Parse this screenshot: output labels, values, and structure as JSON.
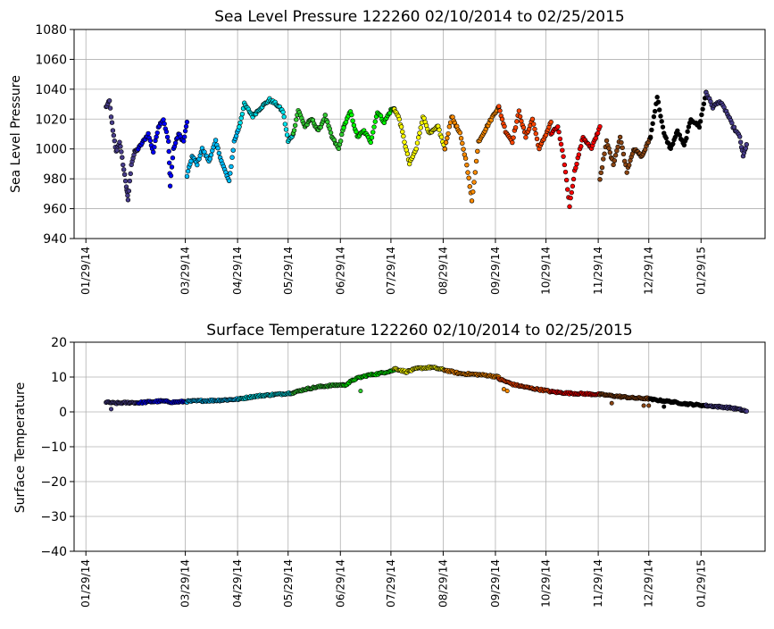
{
  "chart_data": [
    {
      "type": "scatter",
      "title": "Sea Level Pressure 122260  02/10/2014 to 02/25/2015",
      "xlabel": "",
      "ylabel": "Sea Level Pressure",
      "ylim": [
        940,
        1080
      ],
      "yticks": [
        940,
        960,
        980,
        1000,
        1020,
        1040,
        1060,
        1080
      ],
      "xlim": [
        "2014-01-22",
        "2015-03-08"
      ],
      "xticks": [
        "2014-01-29",
        "2014-03-29",
        "2014-04-29",
        "2014-05-29",
        "2014-06-29",
        "2014-07-29",
        "2014-08-29",
        "2014-09-29",
        "2014-10-29",
        "2014-11-29",
        "2014-12-29",
        "2015-01-29"
      ],
      "xtick_labels": [
        "01/29/14",
        "03/29/14",
        "04/29/14",
        "05/29/14",
        "06/29/14",
        "07/29/14",
        "08/29/14",
        "09/29/14",
        "10/29/14",
        "11/29/14",
        "12/29/14",
        "01/29/15"
      ],
      "grid": true,
      "legend": "none",
      "series": [
        {
          "color": "#483d8b",
          "points": [
            [
              "2014-02-10",
              1028
            ],
            [
              "2014-02-12",
              1032
            ],
            [
              "2014-02-14",
              1012
            ],
            [
              "2014-02-16",
              998
            ],
            [
              "2014-02-18",
              1005
            ],
            [
              "2014-02-20",
              990
            ],
            [
              "2014-02-22",
              975
            ],
            [
              "2014-02-23",
              966
            ],
            [
              "2014-02-25",
              990
            ],
            [
              "2014-02-27",
              998
            ],
            [
              "2014-03-01",
              1000
            ]
          ]
        },
        {
          "color": "#0000ff",
          "points": [
            [
              "2014-03-01",
              1000
            ],
            [
              "2014-03-04",
              1005
            ],
            [
              "2014-03-07",
              1010
            ],
            [
              "2014-03-10",
              998
            ],
            [
              "2014-03-13",
              1015
            ],
            [
              "2014-03-16",
              1020
            ],
            [
              "2014-03-19",
              1005
            ],
            [
              "2014-03-20",
              976
            ],
            [
              "2014-03-22",
              1000
            ],
            [
              "2014-03-25",
              1010
            ],
            [
              "2014-03-28",
              1005
            ],
            [
              "2014-03-30",
              1018
            ]
          ]
        },
        {
          "color": "#00bfff",
          "points": [
            [
              "2014-03-30",
              982
            ],
            [
              "2014-04-02",
              995
            ],
            [
              "2014-04-05",
              990
            ],
            [
              "2014-04-08",
              1000
            ],
            [
              "2014-04-12",
              992
            ],
            [
              "2014-04-16",
              1005
            ],
            [
              "2014-04-20",
              990
            ],
            [
              "2014-04-24",
              978
            ],
            [
              "2014-04-27",
              1005
            ],
            [
              "2014-04-30",
              1015
            ]
          ]
        },
        {
          "color": "#00e5ee",
          "points": [
            [
              "2014-04-30",
              1015
            ],
            [
              "2014-05-03",
              1030
            ],
            [
              "2014-05-08",
              1022
            ],
            [
              "2014-05-13",
              1028
            ],
            [
              "2014-05-18",
              1033
            ],
            [
              "2014-05-22",
              1030
            ],
            [
              "2014-05-26",
              1025
            ],
            [
              "2014-05-29",
              1005
            ],
            [
              "2014-06-01",
              1010
            ]
          ]
        },
        {
          "color": "#32cd32",
          "points": [
            [
              "2014-06-01",
              1010
            ],
            [
              "2014-06-04",
              1026
            ],
            [
              "2014-06-08",
              1015
            ],
            [
              "2014-06-12",
              1020
            ],
            [
              "2014-06-16",
              1012
            ],
            [
              "2014-06-20",
              1022
            ],
            [
              "2014-06-24",
              1008
            ],
            [
              "2014-06-28",
              1000
            ],
            [
              "2014-07-01",
              1015
            ]
          ]
        },
        {
          "color": "#00ff00",
          "points": [
            [
              "2014-07-01",
              1015
            ],
            [
              "2014-07-05",
              1025
            ],
            [
              "2014-07-09",
              1008
            ],
            [
              "2014-07-13",
              1012
            ],
            [
              "2014-07-17",
              1005
            ],
            [
              "2014-07-21",
              1025
            ],
            [
              "2014-07-25",
              1018
            ],
            [
              "2014-07-29",
              1026
            ],
            [
              "2014-07-31",
              1027
            ]
          ]
        },
        {
          "color": "#ffff00",
          "points": [
            [
              "2014-07-31",
              1027
            ],
            [
              "2014-08-03",
              1020
            ],
            [
              "2014-08-06",
              1005
            ],
            [
              "2014-08-09",
              990
            ],
            [
              "2014-08-13",
              1000
            ],
            [
              "2014-08-17",
              1022
            ],
            [
              "2014-08-21",
              1010
            ],
            [
              "2014-08-26",
              1015
            ],
            [
              "2014-08-30",
              1000
            ]
          ]
        },
        {
          "color": "#ff8c00",
          "points": [
            [
              "2014-08-30",
              1000
            ],
            [
              "2014-09-03",
              1022
            ],
            [
              "2014-09-08",
              1010
            ],
            [
              "2014-09-12",
              990
            ],
            [
              "2014-09-15",
              965
            ],
            [
              "2014-09-19",
              1005
            ],
            [
              "2014-09-24",
              1015
            ],
            [
              "2014-09-29",
              1025
            ],
            [
              "2014-10-01",
              1028
            ]
          ]
        },
        {
          "color": "#ff4500",
          "points": [
            [
              "2014-10-01",
              1028
            ],
            [
              "2014-10-05",
              1012
            ],
            [
              "2014-10-09",
              1005
            ],
            [
              "2014-10-13",
              1025
            ],
            [
              "2014-10-17",
              1008
            ],
            [
              "2014-10-21",
              1020
            ],
            [
              "2014-10-25",
              1000
            ],
            [
              "2014-10-29",
              1010
            ],
            [
              "2014-11-01",
              1018
            ]
          ]
        },
        {
          "color": "#ff0000",
          "points": [
            [
              "2014-11-01",
              1010
            ],
            [
              "2014-11-05",
              1015
            ],
            [
              "2014-11-09",
              990
            ],
            [
              "2014-11-12",
              962
            ],
            [
              "2014-11-15",
              985
            ],
            [
              "2014-11-20",
              1008
            ],
            [
              "2014-11-25",
              1000
            ],
            [
              "2014-11-30",
              1015
            ]
          ]
        },
        {
          "color": "#8b4513",
          "points": [
            [
              "2014-11-30",
              980
            ],
            [
              "2014-12-04",
              1005
            ],
            [
              "2014-12-08",
              990
            ],
            [
              "2014-12-12",
              1008
            ],
            [
              "2014-12-16",
              985
            ],
            [
              "2014-12-20",
              1000
            ],
            [
              "2014-12-25",
              995
            ],
            [
              "2014-12-30",
              1008
            ]
          ]
        },
        {
          "color": "#000000",
          "points": [
            [
              "2014-12-30",
              1008
            ],
            [
              "2015-01-03",
              1035
            ],
            [
              "2015-01-07",
              1010
            ],
            [
              "2015-01-11",
              1000
            ],
            [
              "2015-01-15",
              1012
            ],
            [
              "2015-01-19",
              1002
            ],
            [
              "2015-01-23",
              1020
            ],
            [
              "2015-01-28",
              1015
            ],
            [
              "2015-02-01",
              1038
            ]
          ]
        },
        {
          "color": "#483d8b",
          "points": [
            [
              "2015-02-01",
              1038
            ],
            [
              "2015-02-05",
              1028
            ],
            [
              "2015-02-09",
              1032
            ],
            [
              "2015-02-13",
              1025
            ],
            [
              "2015-02-17",
              1015
            ],
            [
              "2015-02-21",
              1008
            ],
            [
              "2015-02-23",
              995
            ],
            [
              "2015-02-25",
              1003
            ]
          ]
        }
      ]
    },
    {
      "type": "scatter",
      "title": "Surface Temperature 122260  02/10/2014 to 02/25/2015",
      "xlabel": "",
      "ylabel": "Surface Temperature",
      "ylim": [
        -40,
        20
      ],
      "yticks": [
        -40,
        -30,
        -20,
        -10,
        0,
        10,
        20
      ],
      "ytick_labels": [
        "−40",
        "−30",
        "−20",
        "−10",
        "0",
        "10",
        "20"
      ],
      "xlim": [
        "2014-01-22",
        "2015-03-08"
      ],
      "xticks": [
        "2014-01-29",
        "2014-03-29",
        "2014-04-29",
        "2014-05-29",
        "2014-06-29",
        "2014-07-29",
        "2014-08-29",
        "2014-09-29",
        "2014-10-29",
        "2014-11-29",
        "2014-12-29",
        "2015-01-29"
      ],
      "xtick_labels": [
        "01/29/14",
        "03/29/14",
        "04/29/14",
        "05/29/14",
        "06/29/14",
        "07/29/14",
        "08/29/14",
        "09/29/14",
        "10/29/14",
        "11/29/14",
        "12/29/14",
        "01/29/15"
      ],
      "grid": true,
      "legend": "none",
      "series": [
        {
          "color": "#483d8b",
          "points": [
            [
              "2014-02-10",
              2.8
            ],
            [
              "2014-02-15",
              2.5
            ],
            [
              "2014-02-20",
              2.6
            ],
            [
              "2014-02-25",
              2.7
            ],
            [
              "2014-03-01",
              2.6
            ]
          ]
        },
        {
          "color": "#0000ff",
          "points": [
            [
              "2014-03-01",
              2.6
            ],
            [
              "2014-03-08",
              2.9
            ],
            [
              "2014-03-15",
              3.1
            ],
            [
              "2014-03-22",
              2.8
            ],
            [
              "2014-03-30",
              3.0
            ]
          ]
        },
        {
          "color": "#00bfff",
          "points": [
            [
              "2014-03-30",
              3.0
            ],
            [
              "2014-04-08",
              3.2
            ],
            [
              "2014-04-16",
              3.3
            ],
            [
              "2014-04-24",
              3.5
            ],
            [
              "2014-04-30",
              3.7
            ]
          ]
        },
        {
          "color": "#00e5ee",
          "points": [
            [
              "2014-04-30",
              3.7
            ],
            [
              "2014-05-08",
              4.4
            ],
            [
              "2014-05-16",
              4.8
            ],
            [
              "2014-05-24",
              5.1
            ],
            [
              "2014-06-01",
              5.5
            ]
          ]
        },
        {
          "color": "#32cd32",
          "points": [
            [
              "2014-06-01",
              5.5
            ],
            [
              "2014-06-08",
              6.5
            ],
            [
              "2014-06-16",
              7.2
            ],
            [
              "2014-06-24",
              7.6
            ],
            [
              "2014-07-01",
              7.8
            ]
          ]
        },
        {
          "color": "#00ff00",
          "points": [
            [
              "2014-07-01",
              7.5
            ],
            [
              "2014-07-08",
              9.5
            ],
            [
              "2014-07-15",
              10.5
            ],
            [
              "2014-07-22",
              11.0
            ],
            [
              "2014-07-31",
              12.0
            ]
          ]
        },
        {
          "color": "#ffff00",
          "points": [
            [
              "2014-07-31",
              12.5
            ],
            [
              "2014-08-07",
              11.5
            ],
            [
              "2014-08-14",
              12.5
            ],
            [
              "2014-08-22",
              12.8
            ],
            [
              "2014-08-30",
              12.0
            ]
          ]
        },
        {
          "color": "#ff8c00",
          "points": [
            [
              "2014-08-30",
              12.0
            ],
            [
              "2014-09-08",
              11.0
            ],
            [
              "2014-09-16",
              10.8
            ],
            [
              "2014-09-24",
              10.5
            ],
            [
              "2014-10-01",
              10.0
            ]
          ]
        },
        {
          "color": "#ff4500",
          "points": [
            [
              "2014-10-01",
              9.5
            ],
            [
              "2014-10-10",
              7.8
            ],
            [
              "2014-10-20",
              6.8
            ],
            [
              "2014-10-28",
              6.2
            ],
            [
              "2014-11-01",
              5.8
            ]
          ]
        },
        {
          "color": "#ff0000",
          "points": [
            [
              "2014-11-01",
              5.8
            ],
            [
              "2014-11-10",
              5.4
            ],
            [
              "2014-11-20",
              5.2
            ],
            [
              "2014-11-30",
              5.0
            ]
          ]
        },
        {
          "color": "#8b4513",
          "points": [
            [
              "2014-11-30",
              5.0
            ],
            [
              "2014-12-10",
              4.5
            ],
            [
              "2014-12-20",
              4.0
            ],
            [
              "2014-12-30",
              3.8
            ]
          ]
        },
        {
          "color": "#000000",
          "points": [
            [
              "2014-12-30",
              3.6
            ],
            [
              "2015-01-10",
              3.0
            ],
            [
              "2015-01-20",
              2.3
            ],
            [
              "2015-02-01",
              1.8
            ]
          ]
        },
        {
          "color": "#483d8b",
          "points": [
            [
              "2015-02-01",
              1.8
            ],
            [
              "2015-02-08",
              1.5
            ],
            [
              "2015-02-15",
              1.2
            ],
            [
              "2015-02-20",
              0.8
            ],
            [
              "2015-02-25",
              0.2
            ]
          ]
        }
      ],
      "outliers": [
        {
          "color": "#483d8b",
          "x": "2014-02-13",
          "y": 0.8
        },
        {
          "color": "#32cd32",
          "x": "2014-07-11",
          "y": 6.0
        },
        {
          "color": "#ff8c00",
          "x": "2014-10-04",
          "y": 6.5
        },
        {
          "color": "#ff8c00",
          "x": "2014-10-06",
          "y": 6.0
        },
        {
          "color": "#8b4513",
          "x": "2014-12-07",
          "y": 2.5
        },
        {
          "color": "#8b4513",
          "x": "2014-12-26",
          "y": 1.8
        },
        {
          "color": "#8b4513",
          "x": "2014-12-29",
          "y": 1.8
        },
        {
          "color": "#000000",
          "x": "2015-01-07",
          "y": 1.5
        }
      ]
    }
  ]
}
